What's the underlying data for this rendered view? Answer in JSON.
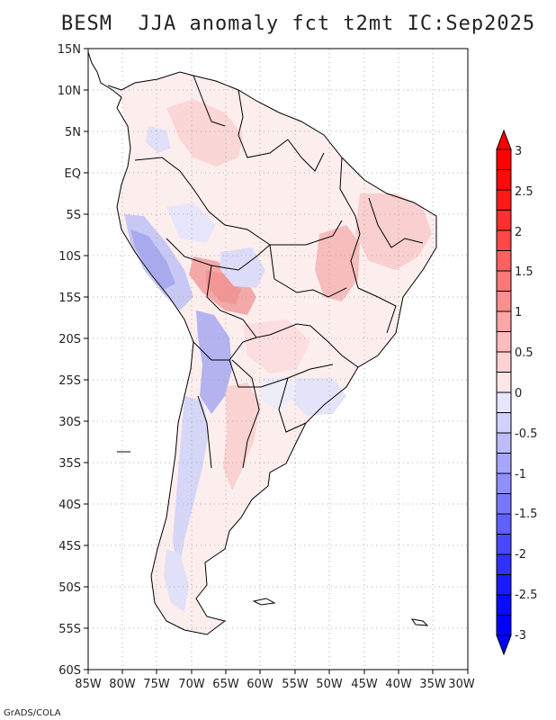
{
  "title": "BESM  JJA anomaly fct t2mt IC:Sep2025",
  "credit": "GrADS/COLA",
  "map": {
    "lat_labels": [
      "15N",
      "10N",
      "5N",
      "EQ",
      "5S",
      "10S",
      "15S",
      "20S",
      "25S",
      "30S",
      "35S",
      "40S",
      "45S",
      "50S",
      "55S",
      "60S"
    ],
    "lon_labels": [
      "85W",
      "80W",
      "75W",
      "70W",
      "65W",
      "60W",
      "55W",
      "50W",
      "45W",
      "40W",
      "35W",
      "30W"
    ]
  },
  "colorbar": {
    "labels": [
      "3",
      "2.5",
      "2",
      "1.5",
      "1",
      "0.5",
      "0",
      "-0.5",
      "-1",
      "-1.5",
      "-2",
      "-2.5",
      "-3"
    ],
    "colors": {
      "warm": [
        "#ffffff",
        "#ffe6e6",
        "#ffd1d1",
        "#ffbcbc",
        "#ffa6a6",
        "#ff8f8f",
        "#ff7878",
        "#ff6060",
        "#ff4848",
        "#ff3030",
        "#ff1a1a",
        "#ff0a0a",
        "#ff0000"
      ],
      "cool": [
        "#ffffff",
        "#e6e6ff",
        "#d1d1ff",
        "#bcbcff",
        "#a6a6ff",
        "#8f8fff",
        "#7878ff",
        "#6060ff",
        "#4848ff",
        "#3030ff",
        "#1a1aff",
        "#0a0aff",
        "#0000ff"
      ]
    }
  },
  "colors": {
    "frame": "#000000",
    "grid": "#aaaaaa",
    "coast": "#000000"
  }
}
